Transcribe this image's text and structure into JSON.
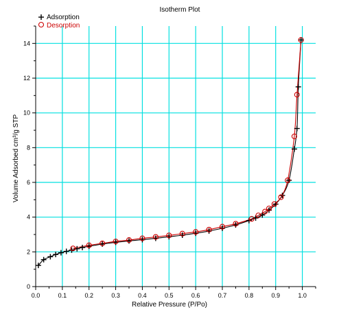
{
  "chart_data": {
    "type": "scatter",
    "title": "Isotherm Plot",
    "xlabel": "Relative Pressure (P/Po)",
    "ylabel": "Volume Adsorbed cm³/g STP",
    "xlim": [
      0.0,
      1.05
    ],
    "ylim": [
      0,
      15
    ],
    "xticks": [
      "0.0",
      "0.1",
      "0.2",
      "0.3",
      "0.4",
      "0.5",
      "0.6",
      "0.7",
      "0.8",
      "0.9",
      "1.0"
    ],
    "yticks": [
      "0",
      "2",
      "4",
      "6",
      "8",
      "10",
      "12",
      "14"
    ],
    "grid": true,
    "grid_color": "#00e0e0",
    "legend_position": "top-left",
    "series": [
      {
        "name": "Adsorption",
        "marker": "plus",
        "color": "#000000",
        "points": [
          [
            0.01,
            1.22
          ],
          [
            0.03,
            1.55
          ],
          [
            0.055,
            1.72
          ],
          [
            0.075,
            1.85
          ],
          [
            0.095,
            1.95
          ],
          [
            0.115,
            2.03
          ],
          [
            0.135,
            2.1
          ],
          [
            0.155,
            2.18
          ],
          [
            0.175,
            2.25
          ],
          [
            0.2,
            2.32
          ],
          [
            0.25,
            2.45
          ],
          [
            0.3,
            2.55
          ],
          [
            0.35,
            2.63
          ],
          [
            0.4,
            2.7
          ],
          [
            0.45,
            2.78
          ],
          [
            0.5,
            2.87
          ],
          [
            0.55,
            2.96
          ],
          [
            0.6,
            3.07
          ],
          [
            0.65,
            3.2
          ],
          [
            0.7,
            3.36
          ],
          [
            0.75,
            3.55
          ],
          [
            0.8,
            3.8
          ],
          [
            0.825,
            3.95
          ],
          [
            0.85,
            4.12
          ],
          [
            0.875,
            4.4
          ],
          [
            0.9,
            4.75
          ],
          [
            0.925,
            5.25
          ],
          [
            0.95,
            6.12
          ],
          [
            0.97,
            7.92
          ],
          [
            0.98,
            9.1
          ],
          [
            0.985,
            11.5
          ],
          [
            0.995,
            14.2
          ]
        ]
      },
      {
        "name": "Desorption",
        "marker": "circle",
        "color": "#cc0000",
        "points": [
          [
            0.995,
            14.2
          ],
          [
            0.98,
            11.05
          ],
          [
            0.97,
            8.65
          ],
          [
            0.945,
            6.12
          ],
          [
            0.92,
            5.15
          ],
          [
            0.895,
            4.75
          ],
          [
            0.875,
            4.5
          ],
          [
            0.86,
            4.32
          ],
          [
            0.835,
            4.1
          ],
          [
            0.81,
            3.9
          ],
          [
            0.75,
            3.62
          ],
          [
            0.7,
            3.45
          ],
          [
            0.65,
            3.28
          ],
          [
            0.6,
            3.15
          ],
          [
            0.55,
            3.05
          ],
          [
            0.5,
            2.95
          ],
          [
            0.45,
            2.86
          ],
          [
            0.4,
            2.78
          ],
          [
            0.35,
            2.68
          ],
          [
            0.3,
            2.6
          ],
          [
            0.25,
            2.49
          ],
          [
            0.2,
            2.38
          ],
          [
            0.14,
            2.2
          ]
        ]
      }
    ]
  }
}
